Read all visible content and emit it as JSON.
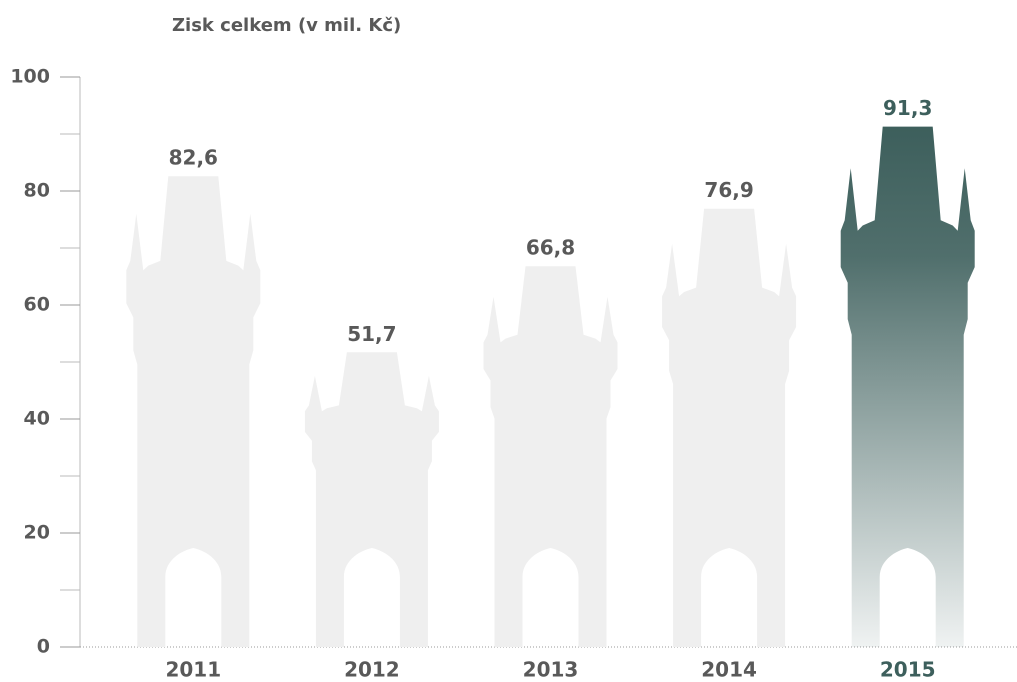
{
  "chart_data": {
    "type": "tower-bar",
    "title": "Zisk celkem (v mil. Kč)",
    "categories": [
      "2011",
      "2012",
      "2013",
      "2014",
      "2015"
    ],
    "values": [
      82.6,
      51.7,
      66.8,
      76.9,
      91.3
    ],
    "value_labels": [
      "82,6",
      "51,7",
      "66,8",
      "76,9",
      "91,3"
    ],
    "colors": [
      "#efefef",
      "#efefef",
      "#efefef",
      "#efefef",
      "#3d5f5c"
    ],
    "ylim": [
      0,
      100
    ],
    "yticks": [
      0,
      20,
      40,
      60,
      80,
      100
    ],
    "minor_yticks": [
      10,
      30,
      50,
      70,
      90
    ]
  }
}
